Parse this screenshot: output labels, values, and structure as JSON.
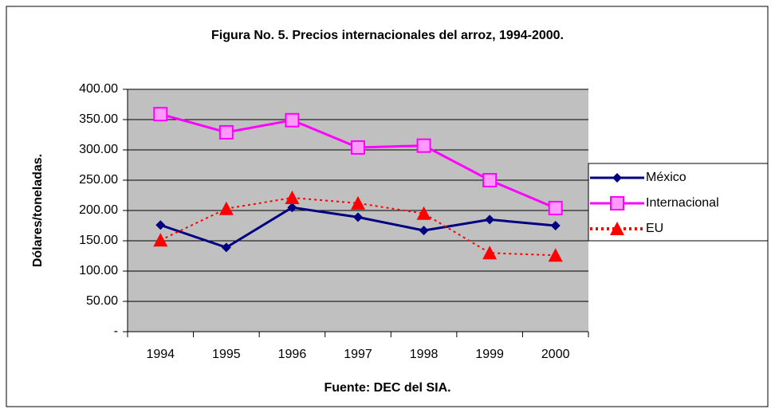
{
  "chart_data": {
    "type": "line",
    "title": "Figura No. 5. Precios internacionales del arroz, 1994-2000.",
    "x_label": "Fuente: DEC del SIA.",
    "y_label": "Dólares/toneladas.",
    "categories": [
      "1994",
      "1995",
      "1996",
      "1997",
      "1998",
      "1999",
      "2000"
    ],
    "series": [
      {
        "name": "México",
        "color": "#000080",
        "marker": "diamond",
        "line_style": "solid",
        "values": [
          176,
          139,
          205,
          189,
          167,
          185,
          175
        ]
      },
      {
        "name": "Internacional",
        "color": "#ff00ff",
        "marker": "square",
        "line_style": "solid",
        "values": [
          359,
          329,
          349,
          304,
          307,
          250,
          204
        ]
      },
      {
        "name": "EU",
        "color": "#ff0000",
        "marker": "triangle",
        "line_style": "dotted",
        "values": [
          151,
          203,
          221,
          212,
          195,
          130,
          126
        ]
      }
    ],
    "ylim": [
      0,
      400
    ],
    "yticks": [
      {
        "value": 0,
        "label": "-"
      },
      {
        "value": 50,
        "label": "50.00"
      },
      {
        "value": 100,
        "label": "100.00"
      },
      {
        "value": 150,
        "label": "150.00"
      },
      {
        "value": 200,
        "label": "200.00"
      },
      {
        "value": 250,
        "label": "250.00"
      },
      {
        "value": 300,
        "label": "300.00"
      },
      {
        "value": 350,
        "label": "350.00"
      },
      {
        "value": 400,
        "label": "400.00"
      }
    ],
    "grid": true,
    "plot_background": "#c0c0c0",
    "legend_position": "right"
  }
}
